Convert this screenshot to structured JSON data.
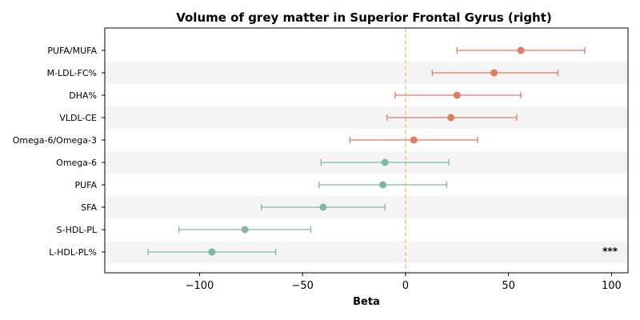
{
  "chart_data": {
    "type": "forest",
    "title": "Volume of grey matter in Superior Frontal Gyrus (right)",
    "xlabel": "Beta",
    "xlim": [
      -146,
      108
    ],
    "xticks": [
      -100,
      -50,
      0,
      50,
      100
    ],
    "xtick_labels": [
      "−100",
      "−50",
      "0",
      "50",
      "100"
    ],
    "reference_line": 0,
    "reference_line_color": "#f5c27f",
    "positive_color": "#e07b60",
    "negative_color": "#7fb89c",
    "band_color": "#f5f5f5",
    "rows": [
      {
        "label": "PUFA/MUFA",
        "beta": 56,
        "lower": 25,
        "upper": 87,
        "sig": ""
      },
      {
        "label": "M-LDL-FC%",
        "beta": 43,
        "lower": 13,
        "upper": 74,
        "sig": ""
      },
      {
        "label": "DHA%",
        "beta": 25,
        "lower": -5,
        "upper": 56,
        "sig": ""
      },
      {
        "label": "VLDL-CE",
        "beta": 22,
        "lower": -9,
        "upper": 54,
        "sig": ""
      },
      {
        "label": "Omega-6/Omega-3",
        "beta": 4,
        "lower": -27,
        "upper": 35,
        "sig": ""
      },
      {
        "label": "Omega-6",
        "beta": -10,
        "lower": -41,
        "upper": 21,
        "sig": ""
      },
      {
        "label": "PUFA",
        "beta": -11,
        "lower": -42,
        "upper": 20,
        "sig": ""
      },
      {
        "label": "SFA",
        "beta": -40,
        "lower": -70,
        "upper": -10,
        "sig": ""
      },
      {
        "label": "S-HDL-PL",
        "beta": -78,
        "lower": -110,
        "upper": -46,
        "sig": ""
      },
      {
        "label": "L-HDL-PL%",
        "beta": -94,
        "lower": -125,
        "upper": -63,
        "sig": "***"
      }
    ]
  }
}
